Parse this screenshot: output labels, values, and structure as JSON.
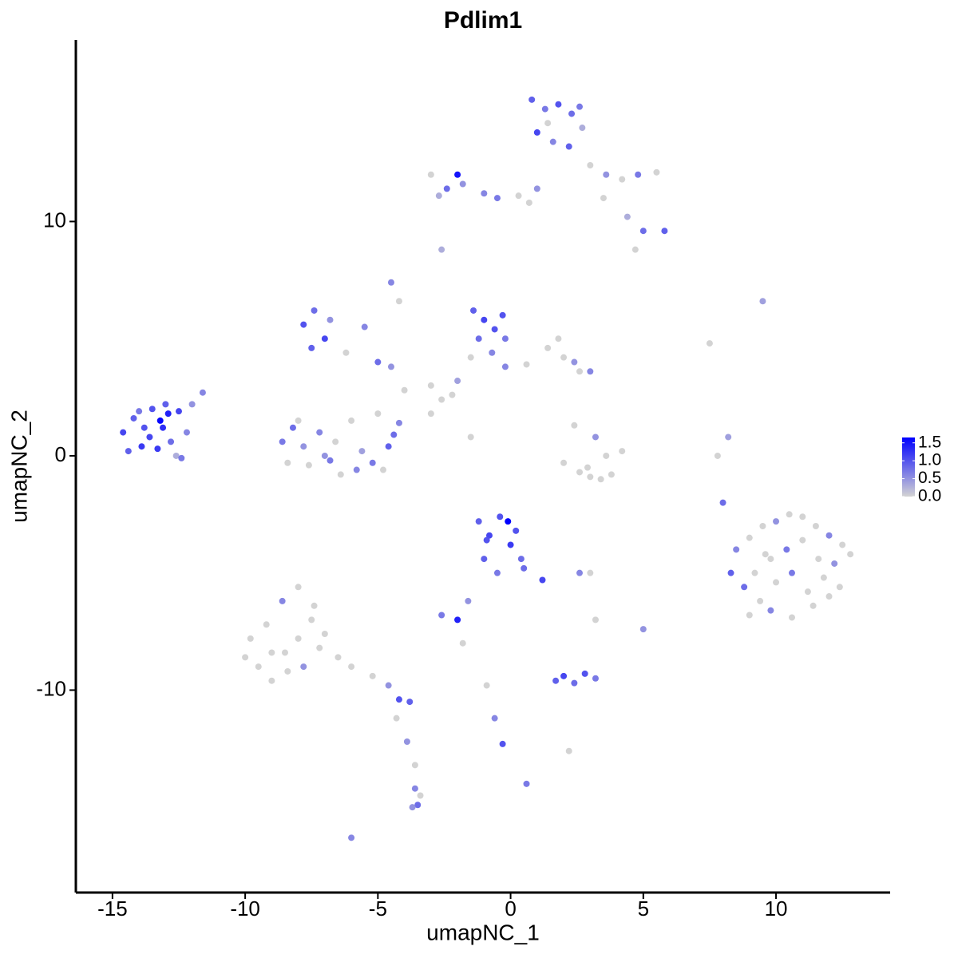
{
  "chart_data": {
    "type": "scatter",
    "title": "Pdlim1",
    "x_label": "umapNC_1",
    "y_label": "umapNC_2",
    "xlim": [
      -16.38,
      14.3
    ],
    "ylim": [
      -18.64,
      17.75
    ],
    "xticks": [
      -15,
      -10,
      -5,
      0,
      5,
      10
    ],
    "yticks": [
      -10,
      0,
      10
    ],
    "color_low": "#d3d3d3",
    "color_high": "#0000ff",
    "color_limits": [
      0,
      1.65
    ],
    "color_ticks": [
      {
        "value": 0,
        "label": "0.0"
      },
      {
        "value": 0.5,
        "label": "0.5"
      },
      {
        "value": 1,
        "label": "1.0"
      },
      {
        "value": 1.5,
        "label": "1.5"
      }
    ],
    "x": [
      -14.6,
      -14.2,
      -13.9,
      -13.5,
      -13.1,
      -12.8,
      -12.5,
      -14.4,
      -13.8,
      -13.3,
      -12.9,
      -13.6,
      -14.0,
      -13.0,
      -12.2,
      -12.6,
      -12.0,
      -11.6,
      -12.4,
      -13.2,
      0.8,
      1.3,
      1.8,
      2.3,
      2.7,
      1.0,
      1.6,
      2.2,
      2.6,
      1.4,
      3.0,
      3.6,
      4.2,
      4.8,
      5.5,
      3.5,
      4.4,
      5.0,
      5.8,
      4.7,
      -3.0,
      -2.4,
      -1.8,
      -1.0,
      -0.5,
      0.3,
      1.0,
      -2.7,
      -2.0,
      0.7,
      -1.4,
      -1.0,
      -0.6,
      -0.2,
      -1.2,
      -0.7,
      -0.3,
      1.4,
      2.0,
      2.6,
      1.8,
      2.4,
      0.6,
      -0.2,
      -1.5,
      -2.0,
      -2.6,
      -3.0,
      -2.2,
      3.0,
      -7.8,
      -7.4,
      -7.0,
      -7.5,
      -6.8,
      -6.2,
      -5.5,
      -5.0,
      -4.5,
      -4.2,
      -8.6,
      -8.2,
      -7.6,
      -7.0,
      -6.4,
      -5.8,
      -5.2,
      -4.6,
      -4.2,
      -8.4,
      -7.8,
      -6.6,
      -5.6,
      -4.8,
      -4.4,
      -6.0,
      -7.2,
      -8.0,
      -5.0,
      -6.8,
      -4.5,
      -2.6,
      -4.0,
      -3.0,
      -1.5,
      9.5,
      7.5,
      8.2,
      7.8,
      8.0,
      2.0,
      2.6,
      3.0,
      3.4,
      3.8,
      4.2,
      2.4,
      3.2,
      3.6,
      2.9,
      8.5,
      9.0,
      9.5,
      10.0,
      10.5,
      11.0,
      11.5,
      12.0,
      12.5,
      9.2,
      9.8,
      10.4,
      11.0,
      11.6,
      12.2,
      12.8,
      8.8,
      9.4,
      10.0,
      10.6,
      11.2,
      11.8,
      12.4,
      9.0,
      9.8,
      10.6,
      11.4,
      12.0,
      8.3,
      9.6,
      -1.2,
      -0.8,
      -0.4,
      0.0,
      0.4,
      -1.0,
      -0.5,
      0.2,
      -0.1,
      1.2,
      -2.6,
      -2.0,
      -1.6,
      -1.8,
      2.6,
      3.0,
      5.0,
      3.2,
      -0.9,
      0.5,
      -10.0,
      -9.5,
      -9.0,
      -8.5,
      -8.0,
      -7.5,
      -9.8,
      -9.2,
      -8.6,
      -8.0,
      -7.4,
      -7.0,
      -9.0,
      -8.4,
      -7.8,
      -7.2,
      -6.5,
      -6.0,
      -5.2,
      -4.6,
      -4.2,
      -3.8,
      -4.3,
      -3.9,
      -3.6,
      -3.6,
      -3.5,
      -3.7,
      -3.4,
      -6.0,
      1.7,
      2.0,
      2.4,
      2.8,
      3.2,
      -0.9,
      -0.6,
      -0.3,
      0.6,
      2.2
    ],
    "y": [
      1.0,
      1.6,
      0.4,
      2.0,
      1.2,
      0.6,
      1.9,
      0.2,
      1.2,
      0.3,
      1.8,
      0.8,
      1.9,
      2.2,
      1.0,
      0.0,
      2.2,
      2.7,
      -0.1,
      1.5,
      15.2,
      14.8,
      15.0,
      14.6,
      14.0,
      13.8,
      13.4,
      13.2,
      14.9,
      14.2,
      12.4,
      12.0,
      11.8,
      12.0,
      12.1,
      11.0,
      10.2,
      9.6,
      9.6,
      8.8,
      12.0,
      11.4,
      11.6,
      11.2,
      11.0,
      11.1,
      11.4,
      11.1,
      12.0,
      10.8,
      6.2,
      5.8,
      5.4,
      5.0,
      5.0,
      4.4,
      6.0,
      4.6,
      4.2,
      3.6,
      5.0,
      4.0,
      3.9,
      3.8,
      4.2,
      3.2,
      2.4,
      3.0,
      2.6,
      3.6,
      5.6,
      6.2,
      5.0,
      4.6,
      5.8,
      4.4,
      5.5,
      4.0,
      3.8,
      6.6,
      0.6,
      1.2,
      -0.4,
      0.0,
      -0.8,
      -0.6,
      -0.3,
      0.4,
      1.4,
      -0.3,
      0.4,
      0.6,
      0.2,
      -0.6,
      0.9,
      1.5,
      1.0,
      1.5,
      1.8,
      -0.2,
      7.4,
      8.8,
      2.8,
      1.8,
      0.8,
      6.6,
      4.8,
      0.8,
      0.0,
      -2.0,
      -0.3,
      -0.7,
      -0.9,
      -1.0,
      -0.8,
      0.2,
      1.3,
      0.8,
      0.0,
      -0.5,
      -4.0,
      -3.5,
      -3.0,
      -2.8,
      -2.5,
      -2.6,
      -3.0,
      -3.4,
      -3.8,
      -5.0,
      -4.4,
      -4.0,
      -3.6,
      -4.4,
      -4.6,
      -4.2,
      -5.6,
      -6.2,
      -5.4,
      -5.0,
      -5.8,
      -5.2,
      -5.6,
      -6.8,
      -6.6,
      -6.9,
      -6.4,
      -6.0,
      -5.0,
      -4.2,
      -2.8,
      -3.4,
      -2.6,
      -3.8,
      -4.4,
      -4.4,
      -5.0,
      -3.2,
      -2.8,
      -5.3,
      -6.8,
      -7.0,
      -6.2,
      -8.0,
      -5.0,
      -5.0,
      -7.4,
      -7.0,
      -3.6,
      -4.8,
      -8.6,
      -9.0,
      -9.6,
      -8.4,
      -7.8,
      -7.0,
      -7.8,
      -7.2,
      -6.2,
      -5.6,
      -6.4,
      -7.6,
      -8.4,
      -9.2,
      -9.0,
      -8.2,
      -8.6,
      -9.0,
      -9.4,
      -9.8,
      -10.4,
      -10.5,
      -11.2,
      -12.2,
      -13.2,
      -14.2,
      -14.9,
      -15.0,
      -14.5,
      -16.3,
      -9.6,
      -9.4,
      -9.7,
      -9.3,
      -9.5,
      -9.8,
      -11.2,
      -12.3,
      -14.0,
      -12.6
    ],
    "expression": [
      1.1,
      0.9,
      1.2,
      1.0,
      1.3,
      0.8,
      1.1,
      0.9,
      1.0,
      1.2,
      1.4,
      1.1,
      0.7,
      0.9,
      0.6,
      0.3,
      0.5,
      0.6,
      0.7,
      1.6,
      0.9,
      0.7,
      1.0,
      0.8,
      0.3,
      1.1,
      0.6,
      0.9,
      0.7,
      0.0,
      0.0,
      0.5,
      0.0,
      0.7,
      0.0,
      0.0,
      0.3,
      0.8,
      0.9,
      0.0,
      0.0,
      0.8,
      0.5,
      0.6,
      0.7,
      0.0,
      0.5,
      0.3,
      1.5,
      0.0,
      0.9,
      1.1,
      1.0,
      0.7,
      0.8,
      0.6,
      1.0,
      0.0,
      0.0,
      0.0,
      0.0,
      0.5,
      0.0,
      0.6,
      0.0,
      0.4,
      0.0,
      0.0,
      0.0,
      0.6,
      1.0,
      0.8,
      1.1,
      0.9,
      0.5,
      0.0,
      0.6,
      0.8,
      0.5,
      0.0,
      0.7,
      0.8,
      0.0,
      0.5,
      0.0,
      0.6,
      0.7,
      0.9,
      0.6,
      0.0,
      0.5,
      0.0,
      0.4,
      0.0,
      0.8,
      0.0,
      0.6,
      0.0,
      0.0,
      0.7,
      0.6,
      0.3,
      0.0,
      0.0,
      0.0,
      0.4,
      0.0,
      0.4,
      0.0,
      0.8,
      0.0,
      0.0,
      0.0,
      0.0,
      0.0,
      0.0,
      0.0,
      0.5,
      0.0,
      0.0,
      0.6,
      0.0,
      0.0,
      0.5,
      0.0,
      0.0,
      0.0,
      0.6,
      0.0,
      0.0,
      0.0,
      0.7,
      0.0,
      0.0,
      0.5,
      0.0,
      0.8,
      0.0,
      0.0,
      0.7,
      0.0,
      0.0,
      0.0,
      0.0,
      0.6,
      0.0,
      0.0,
      0.0,
      0.9,
      0.0,
      0.9,
      1.1,
      1.0,
      1.2,
      0.8,
      0.9,
      0.7,
      1.0,
      1.7,
      1.1,
      0.7,
      1.4,
      0.5,
      0.0,
      0.6,
      0.0,
      0.5,
      0.0,
      1.0,
      0.8,
      0,
      0,
      0,
      0,
      0,
      0,
      0,
      0,
      0.6,
      0,
      0,
      0,
      0,
      0,
      0.5,
      0,
      0,
      0,
      0,
      0.5,
      1.0,
      0.9,
      0.0,
      0.5,
      0.0,
      0.6,
      0.8,
      0.5,
      0.0,
      0.6,
      0.9,
      1.1,
      0.8,
      1.0,
      0.7,
      0.0,
      0.6,
      1.0,
      0.7,
      0.0
    ]
  }
}
